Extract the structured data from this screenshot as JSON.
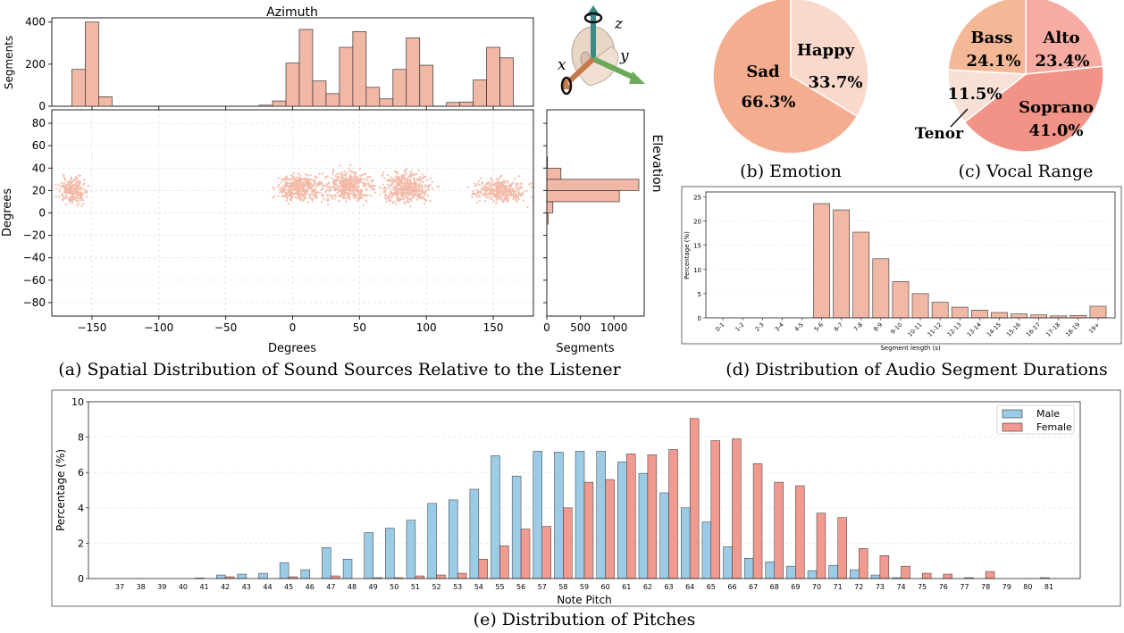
{
  "colors": {
    "salmon": "#f2b8a6",
    "salmon_edge": "#333333",
    "male": "#9ccbe6",
    "female": "#f09a90",
    "pie_sad": "#f5ad8f",
    "pie_happy": "#f9d9cc",
    "pie_bass": "#f5b896",
    "pie_alto": "#f6aba3",
    "pie_soprano": "#f19487",
    "pie_tenor": "#f9e0d6",
    "head_axis_z": "#3a8a8a",
    "head_axis_y": "#6aaa5a",
    "head_axis_x": "#c77a4a"
  },
  "captions": {
    "a": "(a) Spatial Distribution of Sound Sources Relative to the Listener",
    "b": "(b) Emotion",
    "c": "(c)  Vocal Range",
    "d": "(d) Distribution of Audio Segment Durations",
    "e": "(e) Distribution of Pitches"
  },
  "head_icon": {
    "icon": "listener-head-icon",
    "labels": [
      "x",
      "y",
      "z"
    ]
  },
  "chart_data": [
    {
      "id": "azimuth",
      "type": "bar",
      "title": "Azimuth",
      "ylabel": "Segments",
      "ylim": [
        0,
        420
      ],
      "yticks": [
        0,
        200,
        400
      ],
      "xlim": [
        -180,
        180
      ],
      "bin_width": 10,
      "bin_starts": [
        -165,
        -155,
        -145,
        -25,
        -15,
        -5,
        5,
        15,
        25,
        35,
        45,
        55,
        65,
        75,
        85,
        95,
        115,
        125,
        135,
        145,
        155
      ],
      "values": [
        175,
        400,
        45,
        5,
        25,
        205,
        365,
        120,
        60,
        280,
        355,
        90,
        35,
        175,
        325,
        195,
        18,
        20,
        125,
        280,
        230
      ]
    },
    {
      "id": "scatter",
      "type": "scatter",
      "xlabel": "Degrees",
      "ylabel": "Degrees",
      "xlim": [
        -180,
        180
      ],
      "ylim": [
        -92,
        92
      ],
      "xticks": [
        -150,
        -100,
        -50,
        0,
        50,
        100,
        150
      ],
      "yticks": [
        80,
        60,
        40,
        20,
        0,
        -20,
        -40,
        -60,
        -80
      ],
      "clusters": [
        {
          "cx": -164,
          "cy": 20,
          "sx": 5,
          "sy": 5.5,
          "n": 230
        },
        {
          "cx": 5,
          "cy": 22,
          "sx": 8,
          "sy": 6,
          "n": 380
        },
        {
          "cx": 42,
          "cy": 24,
          "sx": 9,
          "sy": 6.5,
          "n": 420
        },
        {
          "cx": 85,
          "cy": 23,
          "sx": 9,
          "sy": 7,
          "n": 440
        },
        {
          "cx": 155,
          "cy": 20,
          "sx": 9,
          "sy": 5,
          "n": 350
        }
      ]
    },
    {
      "id": "elevation",
      "type": "bar",
      "orientation": "horizontal",
      "title": "Elevation",
      "xlabel": "Segments",
      "xlim": [
        0,
        1450
      ],
      "xticks": [
        0,
        500,
        1000
      ],
      "bin_width": 10,
      "bin_starts": [
        -10,
        0,
        10,
        20,
        30,
        40
      ],
      "values": [
        20,
        90,
        1080,
        1370,
        210,
        10
      ]
    },
    {
      "id": "emotion",
      "type": "pie",
      "labels": [
        "Sad",
        "Happy"
      ],
      "values": [
        66.3,
        33.7
      ],
      "value_labels": [
        "66.3%",
        "33.7%"
      ]
    },
    {
      "id": "vocal_range",
      "type": "pie",
      "labels": [
        "Alto",
        "Soprano",
        "Tenor",
        "Bass"
      ],
      "values": [
        23.4,
        41.0,
        11.5,
        24.1
      ],
      "value_labels": [
        "23.4%",
        "41.0%",
        "11.5%",
        "24.1%"
      ]
    },
    {
      "id": "durations",
      "type": "bar",
      "xlabel": "Segment length (s)",
      "ylabel": "Percentage (%)",
      "ylim": [
        0,
        26
      ],
      "yticks": [
        0,
        5,
        10,
        15,
        20,
        25
      ],
      "categories": [
        "0-1",
        "1-2",
        "2-3",
        "3-4",
        "4-5",
        "5-6",
        "6-7",
        "7-8",
        "8-9",
        "9-10",
        "10-11",
        "11-12",
        "12-13",
        "13-14",
        "14-15",
        "15-16",
        "16-17",
        "17-18",
        "18-19",
        "19+"
      ],
      "values": [
        0.0,
        0.0,
        0.0,
        0.0,
        0.0,
        23.6,
        22.3,
        17.7,
        12.2,
        7.5,
        5.0,
        3.2,
        2.2,
        1.6,
        1.1,
        0.8,
        0.6,
        0.4,
        0.5,
        2.4
      ]
    },
    {
      "id": "pitches",
      "type": "bar",
      "xlabel": "Note Pitch",
      "ylabel": "Percentage (%)",
      "ylim": [
        0,
        10
      ],
      "yticks": [
        0,
        2,
        4,
        6,
        8,
        10
      ],
      "categories": [
        "37",
        "38",
        "39",
        "40",
        "41",
        "42",
        "43",
        "44",
        "45",
        "46",
        "47",
        "48",
        "49",
        "50",
        "51",
        "52",
        "53",
        "54",
        "55",
        "56",
        "57",
        "58",
        "59",
        "60",
        "61",
        "62",
        "63",
        "64",
        "65",
        "66",
        "67",
        "68",
        "69",
        "70",
        "71",
        "72",
        "73",
        "74",
        "75",
        "76",
        "77",
        "78",
        "79",
        "80",
        "81"
      ],
      "series": [
        {
          "name": "Male",
          "values": [
            0,
            0,
            0,
            0,
            0.03,
            0.2,
            0.25,
            0.3,
            0.9,
            0.5,
            1.75,
            1.1,
            2.6,
            2.85,
            3.3,
            4.25,
            4.45,
            5.05,
            6.95,
            5.8,
            7.2,
            7.15,
            7.2,
            7.2,
            6.6,
            5.95,
            4.85,
            4.0,
            3.2,
            1.8,
            1.15,
            0.95,
            0.7,
            0.45,
            0.75,
            0.5,
            0.2,
            0.05,
            0,
            0,
            0,
            0,
            0,
            0,
            0.05
          ]
        },
        {
          "name": "Female",
          "values": [
            0,
            0,
            0,
            0,
            0,
            0.1,
            0,
            0,
            0.1,
            0,
            0.15,
            0,
            0.05,
            0.05,
            0.15,
            0.2,
            0.3,
            1.1,
            1.85,
            2.8,
            2.95,
            4.0,
            5.45,
            5.6,
            7.05,
            7.0,
            7.3,
            9.05,
            7.8,
            7.9,
            6.5,
            5.45,
            5.25,
            3.7,
            3.45,
            1.7,
            1.3,
            0.7,
            0.3,
            0.25,
            0.05,
            0.4,
            0,
            0,
            0
          ]
        }
      ]
    }
  ]
}
